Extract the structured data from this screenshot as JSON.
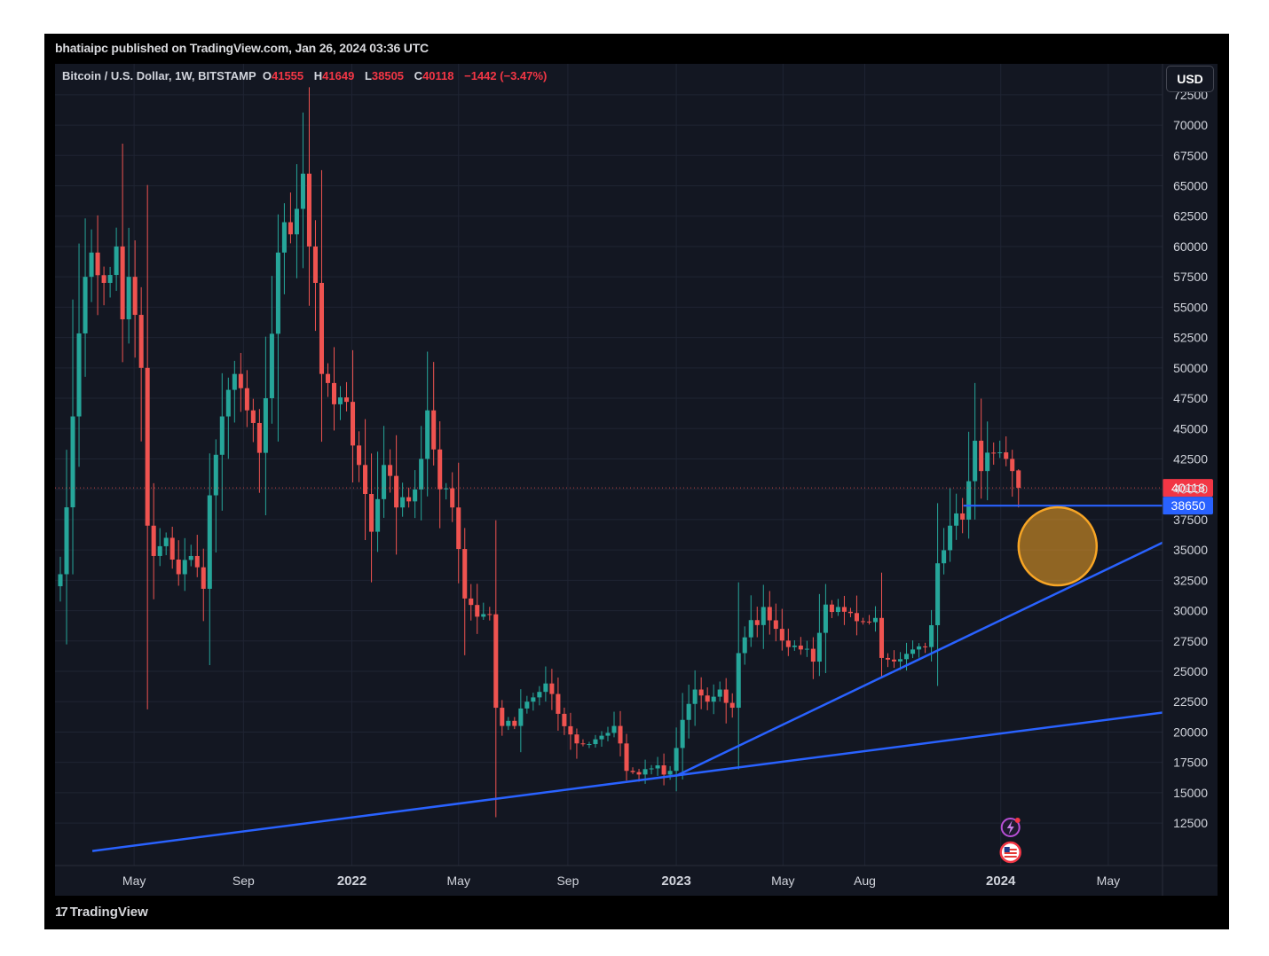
{
  "header": {
    "published": "bhatiaipc published on TradingView.com, Jan 26, 2024 03:36 UTC"
  },
  "legend": {
    "symbol": "Bitcoin / U.S. Dollar, 1W, BITSTAMP",
    "open_key": "O",
    "open": "41555",
    "high_key": "H",
    "high": "41649",
    "low_key": "L",
    "low": "38505",
    "close_key": "C",
    "close": "40118",
    "change": "−1442 (−3.47%)"
  },
  "currency_button": "USD",
  "footer": {
    "brand": "TradingView",
    "logo_icon": "tradingview-logo-icon"
  },
  "colors": {
    "up": "#26a69a",
    "down": "#ef5350",
    "trendline": "#2962ff",
    "highlight": "#f7a525",
    "background": "#131722"
  },
  "chart_data": {
    "type": "candlestick",
    "interval": "1W",
    "y_ticks": [
      12500,
      15000,
      17500,
      20000,
      22500,
      25000,
      27500,
      30000,
      32500,
      35000,
      37500,
      40000,
      42500,
      45000,
      47500,
      50000,
      52500,
      55000,
      57500,
      60000,
      62500,
      65000,
      67500,
      70000,
      72500
    ],
    "y_tick_labels": [
      "12500",
      "15000",
      "17500",
      "20000",
      "22500",
      "25000",
      "27500",
      "30000",
      "32500",
      "35000",
      "37500",
      "40000",
      "42500",
      "45000",
      "47500",
      "50000",
      "52500",
      "55000",
      "57500",
      "60000",
      "62500",
      "65000",
      "67500",
      "70000",
      "72500"
    ],
    "ylim": [
      9000,
      73000
    ],
    "x_start": "2021-02-01",
    "x_end": "2024-07-01",
    "x_ticks": [
      {
        "label": "May",
        "date": "2021-05-01",
        "bold": false
      },
      {
        "label": "Sep",
        "date": "2021-09-01",
        "bold": false
      },
      {
        "label": "2022",
        "date": "2022-01-01",
        "bold": true
      },
      {
        "label": "May",
        "date": "2022-05-01",
        "bold": false
      },
      {
        "label": "Sep",
        "date": "2022-09-01",
        "bold": false
      },
      {
        "label": "2023",
        "date": "2023-01-01",
        "bold": true
      },
      {
        "label": "May",
        "date": "2023-05-01",
        "bold": false
      },
      {
        "label": "Aug",
        "date": "2023-08-01",
        "bold": false
      },
      {
        "label": "2024",
        "date": "2024-01-01",
        "bold": true
      },
      {
        "label": "May",
        "date": "2024-05-01",
        "bold": false
      }
    ],
    "series_anchors": [
      [
        "2021-02-07",
        33000
      ],
      [
        "2021-02-21",
        46000
      ],
      [
        "2021-03-07",
        57500
      ],
      [
        "2021-03-14",
        59500
      ],
      [
        "2021-03-28",
        57000
      ],
      [
        "2021-04-11",
        60000
      ],
      [
        "2021-04-18",
        54000
      ],
      [
        "2021-04-25",
        57500
      ],
      [
        "2021-05-09",
        50000
      ],
      [
        "2021-05-16",
        37000
      ],
      [
        "2021-05-23",
        34500
      ],
      [
        "2021-06-06",
        36000
      ],
      [
        "2021-06-20",
        33000
      ],
      [
        "2021-07-04",
        34500
      ],
      [
        "2021-07-18",
        31800
      ],
      [
        "2021-07-25",
        39500
      ],
      [
        "2021-08-08",
        46000
      ],
      [
        "2021-08-22",
        49500
      ],
      [
        "2021-09-05",
        46500
      ],
      [
        "2021-09-19",
        43000
      ],
      [
        "2021-09-26",
        47500
      ],
      [
        "2021-10-10",
        59500
      ],
      [
        "2021-10-17",
        62000
      ],
      [
        "2021-10-24",
        61000
      ],
      [
        "2021-11-07",
        66000
      ],
      [
        "2021-11-14",
        60000
      ],
      [
        "2021-11-21",
        57000
      ],
      [
        "2021-11-28",
        49500
      ],
      [
        "2021-12-12",
        47000
      ],
      [
        "2021-12-26",
        47200
      ],
      [
        "2022-01-09",
        42000
      ],
      [
        "2022-01-23",
        36500
      ],
      [
        "2022-02-06",
        42000
      ],
      [
        "2022-02-20",
        38500
      ],
      [
        "2022-03-06",
        39000
      ],
      [
        "2022-03-20",
        42500
      ],
      [
        "2022-03-27",
        46500
      ],
      [
        "2022-04-10",
        40000
      ],
      [
        "2022-04-24",
        38500
      ],
      [
        "2022-05-08",
        31000
      ],
      [
        "2022-05-22",
        29500
      ],
      [
        "2022-06-05",
        29700
      ],
      [
        "2022-06-12",
        22000
      ],
      [
        "2022-06-19",
        20500
      ],
      [
        "2022-07-03",
        20500
      ],
      [
        "2022-07-17",
        22500
      ],
      [
        "2022-08-07",
        24000
      ],
      [
        "2022-08-21",
        21500
      ],
      [
        "2022-09-04",
        19800
      ],
      [
        "2022-09-18",
        19000
      ],
      [
        "2022-10-02",
        19400
      ],
      [
        "2022-10-23",
        20500
      ],
      [
        "2022-11-06",
        16800
      ],
      [
        "2022-11-20",
        16500
      ],
      [
        "2022-12-04",
        17000
      ],
      [
        "2022-12-25",
        16800
      ],
      [
        "2023-01-08",
        21000
      ],
      [
        "2023-01-22",
        23500
      ],
      [
        "2023-02-05",
        22500
      ],
      [
        "2023-02-19",
        23500
      ],
      [
        "2023-03-05",
        22000
      ],
      [
        "2023-03-12",
        26500
      ],
      [
        "2023-03-19",
        27800
      ],
      [
        "2023-04-09",
        30300
      ],
      [
        "2023-04-23",
        28500
      ],
      [
        "2023-05-07",
        27000
      ],
      [
        "2023-05-21",
        26800
      ],
      [
        "2023-06-04",
        25800
      ],
      [
        "2023-06-18",
        30500
      ],
      [
        "2023-07-02",
        30300
      ],
      [
        "2023-07-16",
        29800
      ],
      [
        "2023-07-30",
        29100
      ],
      [
        "2023-08-13",
        29400
      ],
      [
        "2023-08-20",
        26100
      ],
      [
        "2023-09-10",
        26000
      ],
      [
        "2023-09-24",
        26800
      ],
      [
        "2023-10-08",
        27000
      ],
      [
        "2023-10-15",
        28800
      ],
      [
        "2023-10-22",
        33900
      ],
      [
        "2023-11-05",
        37000
      ],
      [
        "2023-11-19",
        37500
      ],
      [
        "2023-12-03",
        44000
      ],
      [
        "2023-12-10",
        41500
      ],
      [
        "2023-12-24",
        43000
      ],
      [
        "2024-01-07",
        42500
      ],
      [
        "2024-01-14",
        41500
      ],
      [
        "2024-01-21",
        40118
      ]
    ],
    "last_candle": {
      "date": "2024-01-21",
      "open": 41555,
      "high": 41649,
      "low": 38505,
      "close": 40118
    },
    "current_price_label": "40118",
    "support_level": {
      "value": 38650,
      "label": "38650",
      "from": "2023-11-20"
    },
    "trendlines": [
      {
        "from": [
          "2021-03-15",
          10200
        ],
        "to": [
          "2024-07-01",
          21600
        ]
      },
      {
        "from": [
          "2023-01-01",
          16400
        ],
        "to": [
          "2024-07-01",
          35600
        ]
      }
    ],
    "highlight_circle": {
      "date": "2024-03-05",
      "price": 35300
    },
    "event_icons": [
      {
        "icon": "lightning-icon",
        "date": "2024-01-12"
      },
      {
        "icon": "us-flag-icon",
        "date": "2024-01-12"
      }
    ]
  }
}
